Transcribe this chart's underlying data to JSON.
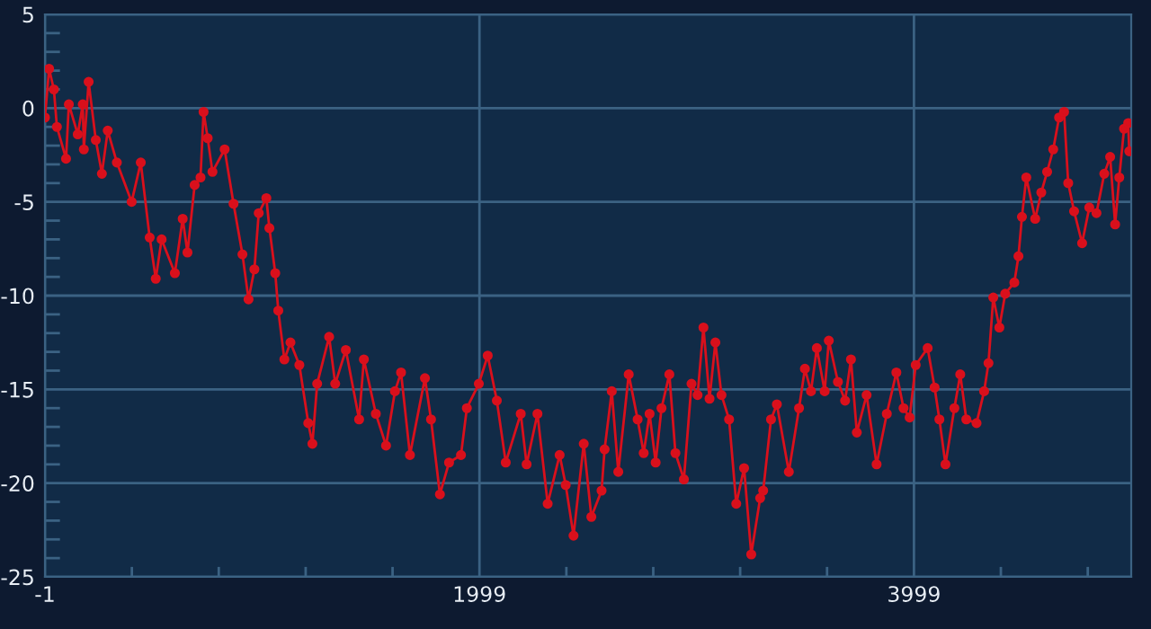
{
  "chart_data": {
    "type": "line",
    "marker": "circle",
    "line_style": "solid",
    "grid": true,
    "xlim": [
      -1,
      4999
    ],
    "ylim": [
      -25,
      5
    ],
    "xticks": [
      -1,
      {
        "value": 399,
        "label": null
      },
      {
        "value": 799,
        "label": null
      },
      {
        "value": 1199,
        "label": null
      },
      {
        "value": 1599,
        "label": null
      },
      1999,
      {
        "value": 2399,
        "label": null
      },
      {
        "value": 2799,
        "label": null
      },
      {
        "value": 3199,
        "label": null
      },
      {
        "value": 3599,
        "label": null
      },
      3999,
      {
        "value": 4399,
        "label": null
      },
      {
        "value": 4799,
        "label": null
      }
    ],
    "yticks": [
      -25,
      {
        "value": -24,
        "label": null
      },
      {
        "value": -23,
        "label": null
      },
      {
        "value": -22,
        "label": null
      },
      {
        "value": -21,
        "label": null
      },
      -20,
      {
        "value": -19,
        "label": null
      },
      {
        "value": -18,
        "label": null
      },
      {
        "value": -17,
        "label": null
      },
      {
        "value": -16,
        "label": null
      },
      -15,
      {
        "value": -14,
        "label": null
      },
      {
        "value": -13,
        "label": null
      },
      {
        "value": -12,
        "label": null
      },
      {
        "value": -11,
        "label": null
      },
      -10,
      {
        "value": -9,
        "label": null
      },
      {
        "value": -8,
        "label": null
      },
      {
        "value": -7,
        "label": null
      },
      {
        "value": -6,
        "label": null
      },
      -5,
      {
        "value": -4,
        "label": null
      },
      {
        "value": -3,
        "label": null
      },
      {
        "value": -2,
        "label": null
      },
      {
        "value": -1,
        "label": null
      },
      0,
      {
        "value": 1,
        "label": null
      },
      {
        "value": 2,
        "label": null
      },
      {
        "value": 3,
        "label": null
      },
      {
        "value": 4,
        "label": null
      },
      5
    ],
    "series": [
      {
        "color": "#d9101c",
        "x": [
          -1,
          18,
          40,
          54,
          96,
          109,
          150,
          173,
          178,
          200,
          233,
          261,
          288,
          330,
          398,
          440,
          481,
          509,
          536,
          597,
          633,
          655,
          688,
          715,
          729,
          748,
          770,
          826,
          867,
          908,
          936,
          963,
          983,
          1018,
          1032,
          1059,
          1073,
          1101,
          1129,
          1170,
          1211,
          1230,
          1252,
          1307,
          1335,
          1384,
          1445,
          1467,
          1522,
          1569,
          1610,
          1638,
          1679,
          1748,
          1776,
          1817,
          1859,
          1914,
          1941,
          1996,
          2037,
          2079,
          2120,
          2189,
          2216,
          2266,
          2313,
          2368,
          2396,
          2432,
          2479,
          2514,
          2561,
          2575,
          2608,
          2638,
          2686,
          2727,
          2755,
          2782,
          2810,
          2837,
          2873,
          2901,
          2940,
          2975,
          3003,
          3030,
          3058,
          3085,
          3113,
          3148,
          3181,
          3217,
          3250,
          3291,
          3305,
          3341,
          3368,
          3423,
          3470,
          3497,
          3525,
          3552,
          3588,
          3607,
          3649,
          3682,
          3709,
          3736,
          3781,
          3827,
          3874,
          3918,
          3951,
          3979,
          4007,
          4062,
          4094,
          4116,
          4144,
          4185,
          4212,
          4240,
          4287,
          4322,
          4342,
          4364,
          4392,
          4419,
          4461,
          4480,
          4496,
          4516,
          4557,
          4585,
          4612,
          4640,
          4667,
          4690,
          4709,
          4736,
          4773,
          4806,
          4839,
          4875,
          4902,
          4925,
          4944,
          4966,
          4985,
          4990
        ],
        "values": [
          -0.5,
          2.1,
          1.0,
          -1.0,
          -2.7,
          0.2,
          -1.4,
          0.2,
          -2.2,
          1.4,
          -1.7,
          -3.5,
          -1.2,
          -2.9,
          -5.0,
          -2.9,
          -6.9,
          -9.1,
          -7.0,
          -8.8,
          -5.9,
          -7.7,
          -4.1,
          -3.7,
          -0.2,
          -1.6,
          -3.4,
          -2.2,
          -5.1,
          -7.8,
          -10.2,
          -8.6,
          -5.6,
          -4.8,
          -6.4,
          -8.8,
          -10.8,
          -13.4,
          -12.5,
          -13.7,
          -16.8,
          -17.9,
          -14.7,
          -12.2,
          -14.7,
          -12.9,
          -16.6,
          -13.4,
          -16.3,
          -18.0,
          -15.1,
          -14.1,
          -18.5,
          -14.4,
          -16.6,
          -20.6,
          -18.9,
          -18.5,
          -16.0,
          -14.7,
          -13.2,
          -15.6,
          -18.9,
          -16.3,
          -19.0,
          -16.3,
          -21.1,
          -18.5,
          -20.1,
          -22.8,
          -17.9,
          -21.8,
          -20.4,
          -18.2,
          -15.1,
          -19.4,
          -14.2,
          -16.6,
          -18.4,
          -16.3,
          -18.9,
          -16.0,
          -14.2,
          -18.4,
          -19.8,
          -14.7,
          -15.3,
          -11.7,
          -15.5,
          -12.5,
          -15.3,
          -16.6,
          -21.1,
          -19.2,
          -23.8,
          -20.8,
          -20.4,
          -16.6,
          -15.8,
          -19.4,
          -16.0,
          -13.9,
          -15.1,
          -12.8,
          -15.1,
          -12.4,
          -14.6,
          -15.6,
          -13.4,
          -17.3,
          -15.3,
          -19.0,
          -16.3,
          -14.1,
          -16.0,
          -16.5,
          -13.7,
          -12.8,
          -14.9,
          -16.6,
          -19.0,
          -16.0,
          -14.2,
          -16.6,
          -16.8,
          -15.1,
          -13.6,
          -10.1,
          -11.7,
          -9.9,
          -9.3,
          -7.9,
          -5.8,
          -3.7,
          -5.9,
          -4.5,
          -3.4,
          -2.2,
          -0.5,
          -0.2,
          -4.0,
          -5.5,
          -7.2,
          -5.3,
          -5.6,
          -3.5,
          -2.6,
          -6.2,
          -3.7,
          -1.1,
          -0.8,
          -2.3
        ]
      }
    ]
  }
}
